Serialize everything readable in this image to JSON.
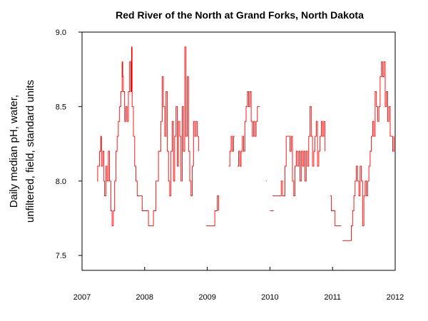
{
  "chart_data": {
    "type": "line",
    "title": "Red River of the North at Grand Forks, North Dakota",
    "ylabel_lines": [
      "Daily median pH, water,",
      "unfiltered, field, standard units"
    ],
    "xlabel": "",
    "xlim": [
      2007.0,
      2012.0
    ],
    "ylim": [
      7.4,
      9.0
    ],
    "x_ticks": [
      2007,
      2008,
      2009,
      2010,
      2011,
      2012
    ],
    "x_tick_labels": [
      "2007",
      "2008",
      "2009",
      "2010",
      "2011",
      "2012"
    ],
    "y_ticks": [
      7.5,
      8.0,
      8.5,
      9.0
    ],
    "y_tick_labels": [
      "7.5",
      "8.0",
      "8.5",
      "9.0"
    ],
    "series": [
      {
        "color": "#ff0000",
        "segments": [
          [
            [
              2007.24,
              8.0
            ],
            [
              2007.25,
              8.1
            ],
            [
              2007.28,
              8.2
            ],
            [
              2007.3,
              8.3
            ],
            [
              2007.31,
              8.1
            ],
            [
              2007.33,
              8.2
            ],
            [
              2007.35,
              8.0
            ],
            [
              2007.36,
              7.9
            ],
            [
              2007.38,
              8.1
            ],
            [
              2007.4,
              8.0
            ],
            [
              2007.42,
              8.2
            ],
            [
              2007.44,
              8.0
            ],
            [
              2007.46,
              7.8
            ],
            [
              2007.48,
              7.7
            ],
            [
              2007.5,
              7.8
            ],
            [
              2007.52,
              8.0
            ],
            [
              2007.54,
              8.2
            ],
            [
              2007.56,
              8.3
            ],
            [
              2007.58,
              8.4
            ],
            [
              2007.6,
              8.5
            ],
            [
              2007.62,
              8.6
            ],
            [
              2007.64,
              8.8
            ],
            [
              2007.65,
              8.7
            ],
            [
              2007.66,
              8.6
            ],
            [
              2007.68,
              8.4
            ],
            [
              2007.7,
              8.5
            ],
            [
              2007.72,
              8.4
            ],
            [
              2007.74,
              8.6
            ],
            [
              2007.76,
              8.8
            ],
            [
              2007.78,
              8.6
            ],
            [
              2007.79,
              8.9
            ],
            [
              2007.8,
              8.5
            ],
            [
              2007.82,
              8.3
            ],
            [
              2007.84,
              8.1
            ],
            [
              2007.86,
              8.0
            ],
            [
              2007.88,
              7.9
            ],
            [
              2007.92,
              7.9
            ],
            [
              2007.96,
              7.8
            ],
            [
              2008.02,
              7.8
            ],
            [
              2008.06,
              7.7
            ],
            [
              2008.1,
              7.7
            ],
            [
              2008.14,
              7.8
            ],
            [
              2008.18,
              8.0
            ],
            [
              2008.22,
              8.2
            ],
            [
              2008.26,
              8.4
            ],
            [
              2008.28,
              8.7
            ],
            [
              2008.3,
              8.5
            ],
            [
              2008.32,
              8.3
            ],
            [
              2008.34,
              8.6
            ],
            [
              2008.36,
              8.2
            ],
            [
              2008.38,
              8.0
            ],
            [
              2008.4,
              7.9
            ],
            [
              2008.42,
              8.2
            ],
            [
              2008.44,
              8.4
            ],
            [
              2008.46,
              8.0
            ],
            [
              2008.48,
              8.3
            ],
            [
              2008.5,
              8.5
            ],
            [
              2008.52,
              8.1
            ],
            [
              2008.54,
              8.4
            ],
            [
              2008.56,
              8.3
            ],
            [
              2008.58,
              8.0
            ],
            [
              2008.6,
              8.5
            ],
            [
              2008.62,
              8.2
            ],
            [
              2008.64,
              8.9
            ],
            [
              2008.66,
              8.3
            ],
            [
              2008.68,
              8.7
            ],
            [
              2008.7,
              8.2
            ],
            [
              2008.72,
              8.0
            ],
            [
              2008.74,
              7.9
            ],
            [
              2008.76,
              8.1
            ],
            [
              2008.78,
              8.4
            ],
            [
              2008.8,
              8.3
            ],
            [
              2008.82,
              8.4
            ],
            [
              2008.84,
              8.3
            ],
            [
              2008.86,
              8.2
            ]
          ],
          [
            [
              2008.98,
              7.7
            ],
            [
              2009.1,
              7.7
            ],
            [
              2009.12,
              7.8
            ],
            [
              2009.14,
              7.8
            ],
            [
              2009.16,
              7.9
            ],
            [
              2009.18,
              7.8
            ]
          ],
          [
            [
              2009.34,
              8.1
            ],
            [
              2009.36,
              8.2
            ],
            [
              2009.38,
              8.3
            ],
            [
              2009.4,
              8.2
            ],
            [
              2009.42,
              8.3
            ],
            [
              2009.44,
              8.3
            ]
          ],
          [
            [
              2009.48,
              8.1
            ],
            [
              2009.5,
              8.2
            ],
            [
              2009.52,
              8.1
            ],
            [
              2009.54,
              8.2
            ],
            [
              2009.56,
              8.3
            ],
            [
              2009.58,
              8.2
            ],
            [
              2009.6,
              8.4
            ],
            [
              2009.62,
              8.5
            ],
            [
              2009.64,
              8.6
            ],
            [
              2009.66,
              8.5
            ],
            [
              2009.68,
              8.6
            ],
            [
              2009.7,
              8.4
            ],
            [
              2009.72,
              8.3
            ],
            [
              2009.74,
              8.4
            ],
            [
              2009.76,
              8.3
            ],
            [
              2009.78,
              8.4
            ],
            [
              2009.8,
              8.5
            ],
            [
              2009.84,
              8.5
            ]
          ],
          [
            [
              2009.94,
              8.0
            ],
            [
              2009.95,
              8.0
            ]
          ],
          [
            [
              2010.0,
              7.8
            ],
            [
              2010.06,
              7.8
            ]
          ],
          [
            [
              2010.04,
              7.9
            ],
            [
              2010.1,
              7.9
            ],
            [
              2010.14,
              7.9
            ],
            [
              2010.18,
              8.0
            ],
            [
              2010.2,
              7.9
            ],
            [
              2010.24,
              8.1
            ],
            [
              2010.26,
              8.3
            ],
            [
              2010.3,
              8.3
            ],
            [
              2010.32,
              8.2
            ],
            [
              2010.34,
              8.3
            ],
            [
              2010.36,
              8.0
            ],
            [
              2010.38,
              7.9
            ],
            [
              2010.4,
              8.1
            ],
            [
              2010.42,
              8.2
            ],
            [
              2010.44,
              8.1
            ],
            [
              2010.46,
              8.2
            ],
            [
              2010.48,
              8.0
            ],
            [
              2010.5,
              8.2
            ],
            [
              2010.52,
              8.1
            ],
            [
              2010.54,
              8.2
            ],
            [
              2010.56,
              8.0
            ],
            [
              2010.58,
              8.2
            ],
            [
              2010.6,
              8.1
            ],
            [
              2010.62,
              8.3
            ],
            [
              2010.64,
              8.5
            ],
            [
              2010.66,
              8.3
            ],
            [
              2010.68,
              8.1
            ],
            [
              2010.7,
              8.2
            ],
            [
              2010.72,
              8.3
            ],
            [
              2010.74,
              8.4
            ],
            [
              2010.76,
              8.1
            ],
            [
              2010.78,
              8.2
            ],
            [
              2010.8,
              8.3
            ],
            [
              2010.82,
              8.4
            ],
            [
              2010.84,
              8.3
            ],
            [
              2010.86,
              8.4
            ],
            [
              2010.88,
              8.2
            ]
          ],
          [
            [
              2010.96,
              7.9
            ],
            [
              2010.98,
              7.8
            ],
            [
              2011.0,
              7.8
            ],
            [
              2011.04,
              7.7
            ],
            [
              2011.1,
              7.7
            ],
            [
              2011.14,
              7.7
            ]
          ],
          [
            [
              2011.16,
              7.6
            ],
            [
              2011.22,
              7.6
            ],
            [
              2011.28,
              7.6
            ],
            [
              2011.3,
              7.7
            ],
            [
              2011.32,
              7.8
            ],
            [
              2011.34,
              7.9
            ],
            [
              2011.36,
              8.0
            ],
            [
              2011.38,
              8.1
            ],
            [
              2011.4,
              8.0
            ],
            [
              2011.42,
              7.9
            ],
            [
              2011.44,
              8.1
            ],
            [
              2011.46,
              8.0
            ],
            [
              2011.48,
              7.7
            ],
            [
              2011.5,
              7.9
            ],
            [
              2011.52,
              8.0
            ],
            [
              2011.54,
              7.9
            ],
            [
              2011.56,
              8.0
            ],
            [
              2011.58,
              8.1
            ],
            [
              2011.6,
              8.2
            ],
            [
              2011.62,
              8.3
            ],
            [
              2011.64,
              8.4
            ],
            [
              2011.66,
              8.3
            ],
            [
              2011.68,
              8.6
            ],
            [
              2011.7,
              8.5
            ],
            [
              2011.72,
              8.4
            ],
            [
              2011.74,
              8.5
            ],
            [
              2011.76,
              8.7
            ],
            [
              2011.78,
              8.8
            ],
            [
              2011.8,
              8.7
            ],
            [
              2011.82,
              8.8
            ],
            [
              2011.84,
              8.5
            ],
            [
              2011.86,
              8.6
            ],
            [
              2011.88,
              8.4
            ],
            [
              2011.9,
              8.5
            ],
            [
              2011.92,
              8.3
            ],
            [
              2011.94,
              8.3
            ],
            [
              2011.96,
              8.2
            ],
            [
              2011.98,
              8.3
            ]
          ]
        ]
      }
    ]
  }
}
